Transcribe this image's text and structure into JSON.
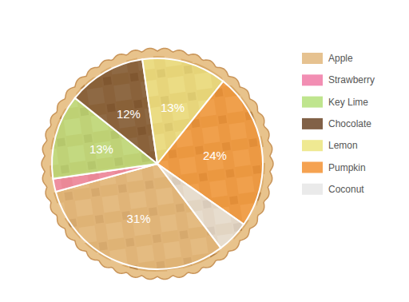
{
  "chart_data": {
    "type": "pie",
    "categories": [
      "Apple",
      "Strawberry",
      "Key Lime",
      "Chocolate",
      "Lemon",
      "Pumpkin",
      "Coconut"
    ],
    "values": [
      31,
      2,
      13,
      12,
      13,
      24,
      5
    ],
    "value_labels": [
      "31%",
      null,
      "13%",
      "12%",
      "13%",
      "24%",
      null
    ],
    "colors": [
      "#e2b77c",
      "#f07aa6",
      "#b4e07a",
      "#6b4527",
      "#ece57f",
      "#f39232",
      "#e6e6e6"
    ],
    "data_labels": true,
    "legend": "right"
  }
}
